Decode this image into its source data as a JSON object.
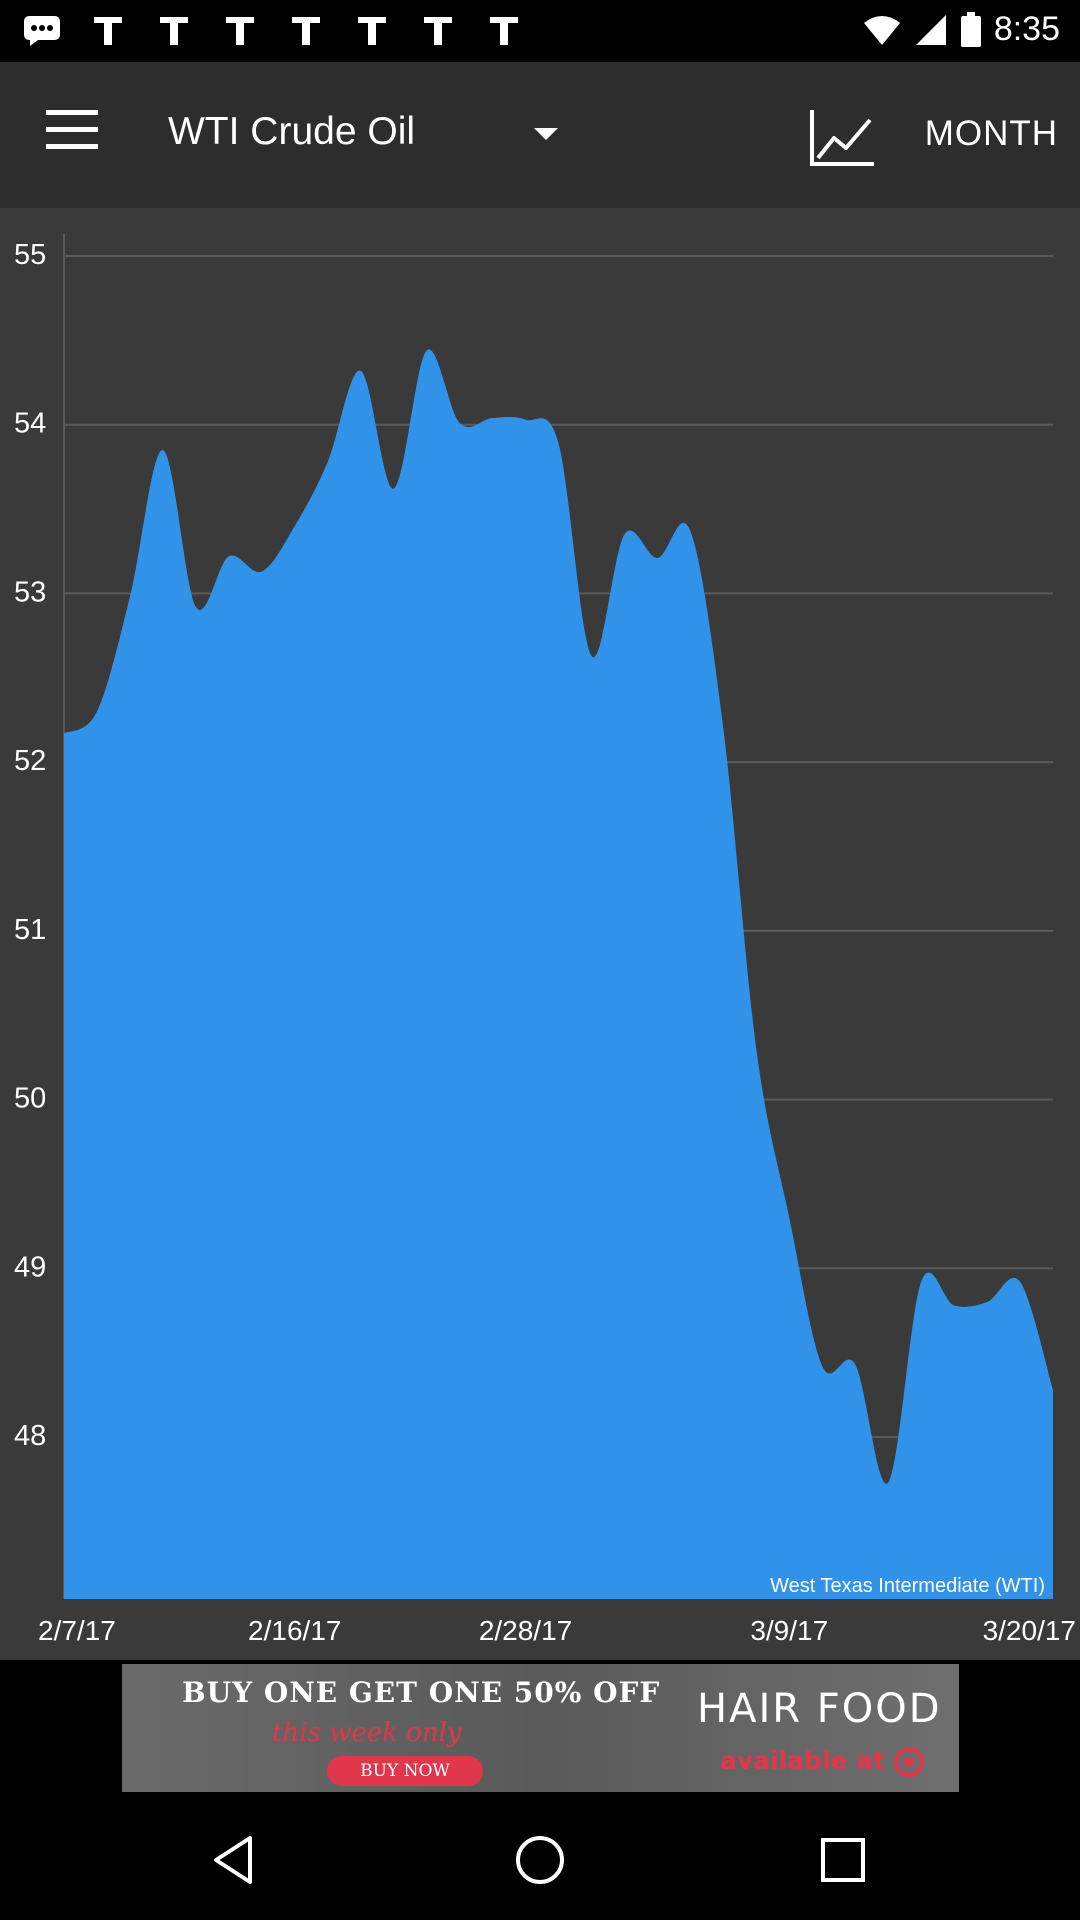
{
  "status_bar": {
    "time": "8:35",
    "notification_icons": [
      "message-icon",
      "photo-icon",
      "photo-icon",
      "photo-icon",
      "photo-icon",
      "photo-icon",
      "photo-icon",
      "photo-icon"
    ],
    "right_icons": [
      "wifi-icon",
      "signal-icon",
      "battery-icon"
    ]
  },
  "toolbar": {
    "title": "WTI Crude Oil",
    "period_label": "MONTH",
    "chart_type_icon": "line-chart-icon",
    "menu_icon": "hamburger-menu-icon",
    "dropdown_icon": "caret-down-icon"
  },
  "colors": {
    "toolbar_bg": "#2d2d2d",
    "chart_bg": "#3a3a3a",
    "area_fill": "#3093e9",
    "grid": "#5a5a5a",
    "ad_accent": "#e0384a"
  },
  "chart_data": {
    "type": "area",
    "title": "",
    "series": [
      {
        "name": "West Texas Intermediate (WTI)",
        "values": [
          52.17,
          52.3,
          52.98,
          53.85,
          52.92,
          53.22,
          53.13,
          53.4,
          53.78,
          54.32,
          53.62,
          54.44,
          54.01,
          54.04,
          54.03,
          53.89,
          52.63,
          53.35,
          53.21,
          53.37,
          52.2,
          50.3,
          49.3,
          48.42,
          48.43,
          47.73,
          48.92,
          48.78,
          48.8,
          48.92,
          48.28
        ]
      }
    ],
    "x_tick_labels": [
      "2/7/17",
      "2/16/17",
      "2/28/17",
      "3/9/17",
      "3/20/17"
    ],
    "x_tick_index": [
      0,
      7,
      14,
      22,
      30
    ],
    "y_ticks": [
      48,
      49,
      50,
      51,
      52,
      53,
      54,
      55
    ],
    "ylim": [
      47.2,
      55
    ],
    "xlabel": "",
    "ylabel": "",
    "legend_position": "bottom-right",
    "grid": true
  },
  "ad": {
    "headline": "BUY ONE GET ONE 50% OFF",
    "subline": "this week only",
    "cta": "BUY NOW",
    "brand": "HAIR FOOD",
    "availability": "available at"
  },
  "nav_bar": {
    "icons": [
      "back-icon",
      "home-icon",
      "recents-icon"
    ]
  }
}
